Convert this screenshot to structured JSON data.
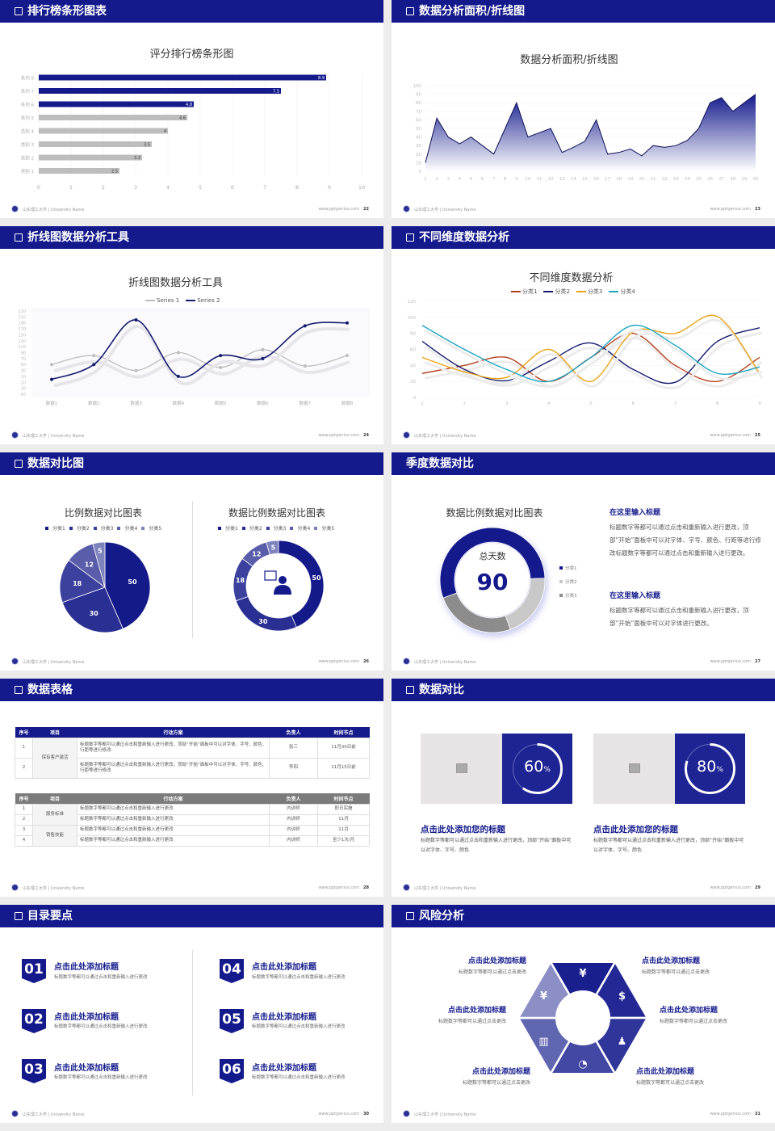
{
  "footer": {
    "left": "山东理工大学 | University Name",
    "right": "www.pptgenius.com"
  },
  "colors": {
    "primary": "#141a8c",
    "gray_bar": "#bdbdbd",
    "background": "#ececec"
  },
  "slides": [
    {
      "header": "排行榜条形图表",
      "page": "22",
      "icon": "checkbox-icon"
    },
    {
      "header": "数据分析面积/折线图",
      "page": "23",
      "icon": "checkbox-icon"
    },
    {
      "header": "折线图数据分析工具",
      "page": "24",
      "icon": "checkbox-icon"
    },
    {
      "header": "不同维度数据分析",
      "page": "25",
      "icon": "checkbox-icon"
    },
    {
      "header": "数据对比图",
      "page": "26",
      "icon": "checkbox-icon"
    },
    {
      "header": "季度数据对比",
      "page": "27",
      "center_label": "总天数",
      "center_value": "90",
      "blocks": [
        {
          "title": "在这里输入标题",
          "text": "标题数字等都可以通过点击和重新输入进行更改，顶部“开始”面板中可以对字体、字号、颜色、行距等进行修改标题数字等都可以通过点击和重新输入进行更改。"
        },
        {
          "title": "在这里输入标题",
          "text": "标题数字等都可以通过点击和重新输入进行更改，顶部“开始”面板中可以对字体进行更改。"
        }
      ]
    },
    {
      "header": "数据表格",
      "page": "28",
      "icon": "checkbox-icon",
      "table1": {
        "columns": [
          "序号",
          "项目",
          "行动方案",
          "负责人",
          "时间节点"
        ],
        "group": "保有客户激活",
        "rows": [
          {
            "no": "1",
            "plan": "标题数字等都可以通过点击和重新输入进行更改，顶部“开始”面板中可以对字体、字号、颜色、行距等进行修改",
            "owner": "张三",
            "time": "11月30日前"
          },
          {
            "no": "2",
            "plan": "标题数字等都可以通过点击和重新输入进行更改，顶部“开始”面板中可以对字体、字号、颜色、行距等进行修改",
            "owner": "李四",
            "time": "11月15日前"
          }
        ]
      },
      "table2": {
        "columns": [
          "序号",
          "项目",
          "行动方案",
          "负责人",
          "时间节点"
        ],
        "groups": [
          "服务标准",
          "销售技能"
        ],
        "rows": [
          {
            "no": "1",
            "plan": "标题数字等都可以通过点击和重新输入进行更改",
            "owner": "内训师",
            "time": "即日实施"
          },
          {
            "no": "2",
            "plan": "标题数字等都可以通过点击和重新输入进行更改",
            "owner": "内训师",
            "time": "11月"
          },
          {
            "no": "3",
            "plan": "标题数字等都可以通过点击和重新输入进行更改",
            "owner": "内训师",
            "time": "11月"
          },
          {
            "no": "4",
            "plan": "标题数字等都可以通过点击和重新输入进行更改",
            "owner": "内训师",
            "time": "至少1次/月"
          }
        ]
      }
    },
    {
      "header": "数据对比",
      "page": "29",
      "icon": "checkbox-icon",
      "cards": [
        {
          "value": 60,
          "value_text": "60",
          "unit": "%",
          "title": "点击此处添加您的标题",
          "text": "标题数字等都可以通过点击和重新输入进行更改，顶部“开始”面板中可以对字体、字号、颜色"
        },
        {
          "value": 80,
          "value_text": "80",
          "unit": "%",
          "title": "点击此处添加您的标题",
          "text": "标题数字等都可以通过点击和重新输入进行更改，顶部“开始”面板中可以对字体、字号、颜色"
        }
      ]
    },
    {
      "header": "目录要点",
      "page": "30",
      "icon": "checkbox-icon",
      "items": [
        {
          "num": "01",
          "title": "点击此处添加标题",
          "text": "标题数字等都可以通过点击和重新输入进行更改"
        },
        {
          "num": "02",
          "title": "点击此处添加标题",
          "text": "标题数字等都可以通过点击和重新输入进行更改"
        },
        {
          "num": "03",
          "title": "点击此处添加标题",
          "text": "标题数字等都可以通过点击和重新输入进行更改"
        },
        {
          "num": "04",
          "title": "点击此处添加标题",
          "text": "标题数字等都可以通过点击和重新输入进行更改"
        },
        {
          "num": "05",
          "title": "点击此处添加标题",
          "text": "标题数字等都可以通过点击和重新输入进行更改"
        },
        {
          "num": "06",
          "title": "点击此处添加标题",
          "text": "标题数字等都可以通过点击和重新输入进行更改"
        }
      ]
    },
    {
      "header": "风险分析",
      "page": "31",
      "icon": "checkbox-icon",
      "items": [
        {
          "title": "点击此处添加标题",
          "text": "标题数字等都可以通过点击更改",
          "icon": "money-bag-icon"
        },
        {
          "title": "点击此处添加标题",
          "text": "标题数字等都可以通过点击更改",
          "icon": "coins-icon"
        },
        {
          "title": "点击此处添加标题",
          "text": "标题数字等都可以通过点击更改",
          "icon": "hand-money-icon"
        },
        {
          "title": "点击此处添加标题",
          "text": "标题数字等都可以通过点击更改",
          "icon": "people-icon"
        },
        {
          "title": "点击此处添加标题",
          "text": "标题数字等都可以通过点击更改",
          "icon": "building-icon"
        },
        {
          "title": "点击此处添加标题",
          "text": "标题数字等都可以通过点击更改",
          "icon": "pie-chart-icon"
        }
      ]
    }
  ],
  "chart_data": [
    {
      "type": "bar",
      "orientation": "horizontal",
      "title": "评分排行榜条形图",
      "categories": [
        "类别 1",
        "类别 2",
        "类别 3",
        "类别 4",
        "系列 5",
        "系列 6",
        "系列 7",
        "系列 8"
      ],
      "values": [
        2.5,
        3.2,
        3.5,
        4,
        4.6,
        4.8,
        7.5,
        8.9
      ],
      "colors": [
        "#bdbdbd",
        "#bdbdbd",
        "#bdbdbd",
        "#bdbdbd",
        "#bdbdbd",
        "#141a8c",
        "#141a8c",
        "#141a8c"
      ],
      "xlim": [
        0,
        10
      ],
      "xticks": [
        0,
        1,
        2,
        3,
        4,
        5,
        6,
        7,
        8,
        9,
        10
      ],
      "grid": true,
      "data_labels": true
    },
    {
      "type": "area",
      "title": "数据分析面积/折线图",
      "x": [
        1,
        2,
        3,
        4,
        5,
        6,
        7,
        8,
        9,
        10,
        11,
        12,
        13,
        14,
        15,
        16,
        17,
        18,
        19,
        20,
        21,
        22,
        23,
        24,
        25,
        26,
        27,
        28,
        29,
        30
      ],
      "values": [
        10,
        62,
        40,
        32,
        40,
        30,
        20,
        50,
        80,
        40,
        45,
        50,
        22,
        28,
        35,
        60,
        20,
        22,
        26,
        18,
        30,
        28,
        30,
        36,
        50,
        80,
        86,
        70,
        80,
        90
      ],
      "ylim": [
        0,
        100
      ],
      "yticks": [
        0,
        10,
        20,
        30,
        40,
        50,
        60,
        70,
        80,
        90,
        100
      ],
      "color": "#141a8c",
      "fill": "gradient"
    },
    {
      "type": "line",
      "smooth": true,
      "title": "折线图数据分析工具",
      "categories": [
        "数据1",
        "数据2",
        "数据3",
        "数据4",
        "数据5",
        "数据6",
        "数据7",
        "数据8"
      ],
      "series": [
        {
          "name": "Series 1",
          "values": [
            50,
            80,
            30,
            90,
            40,
            100,
            45,
            80
          ],
          "color": "#bdbdbd"
        },
        {
          "name": "Series 2",
          "values": [
            0,
            50,
            200,
            10,
            80,
            70,
            180,
            190
          ],
          "color": "#141a6e"
        }
      ],
      "ylim": [
        -50,
        230
      ],
      "yticks": [
        -50,
        -30,
        -10,
        10,
        30,
        50,
        70,
        90,
        110,
        130,
        150,
        170,
        190,
        210,
        230
      ],
      "legend": "top"
    },
    {
      "type": "line",
      "smooth": true,
      "title": "不同维度数据分析",
      "categories": [
        "1",
        "2",
        "3",
        "4",
        "5",
        "6",
        "7",
        "8",
        "9"
      ],
      "series": [
        {
          "name": "分类1",
          "values": [
            30,
            40,
            50,
            20,
            50,
            80,
            40,
            20,
            50
          ],
          "color": "#b5401c"
        },
        {
          "name": "分类2",
          "values": [
            70,
            35,
            21,
            45,
            68,
            35,
            19,
            70,
            87
          ],
          "color": "#141a6e"
        },
        {
          "name": "分类3",
          "values": [
            50,
            32,
            25,
            60,
            20,
            82,
            80,
            101,
            30
          ],
          "color": "#e8a317"
        },
        {
          "name": "分类4",
          "values": [
            90,
            60,
            35,
            20,
            50,
            90,
            65,
            30,
            38
          ],
          "color": "#1ea5c2"
        }
      ],
      "ylim": [
        0,
        120
      ],
      "yticks": [
        0,
        20,
        40,
        60,
        80,
        100,
        120
      ],
      "legend": "top",
      "grid": true
    },
    {
      "type": "pie",
      "title": "比例数据对比图表",
      "categories": [
        "分类1",
        "分类2",
        "分类3",
        "分类4",
        "分类5"
      ],
      "values": [
        50,
        30,
        18,
        12,
        5
      ],
      "colors": [
        "#151a8a",
        "#2a2f94",
        "#3c419e",
        "#5a5eaa",
        "#7e82bd"
      ],
      "legend": "top",
      "data_labels": true
    },
    {
      "type": "donut",
      "title": "数据比例数据对比图表",
      "categories": [
        "分类1",
        "分类2",
        "分类3",
        "分类4",
        "分类5"
      ],
      "values": [
        50,
        30,
        18,
        12,
        5
      ],
      "colors": [
        "#151a8a",
        "#2a2f94",
        "#3c419e",
        "#5a5eaa",
        "#7e82bd"
      ],
      "legend": "top",
      "data_labels": true,
      "center_icon": "person-speech-icon"
    },
    {
      "type": "donut",
      "title": "数据比例数据对比图表",
      "categories": [
        "分类1",
        "分类2",
        "分类3"
      ],
      "values": [
        55,
        20,
        25
      ],
      "colors": [
        "#141a8c",
        "#c8c8c8",
        "#8c8c8c"
      ],
      "legend": "right"
    }
  ]
}
